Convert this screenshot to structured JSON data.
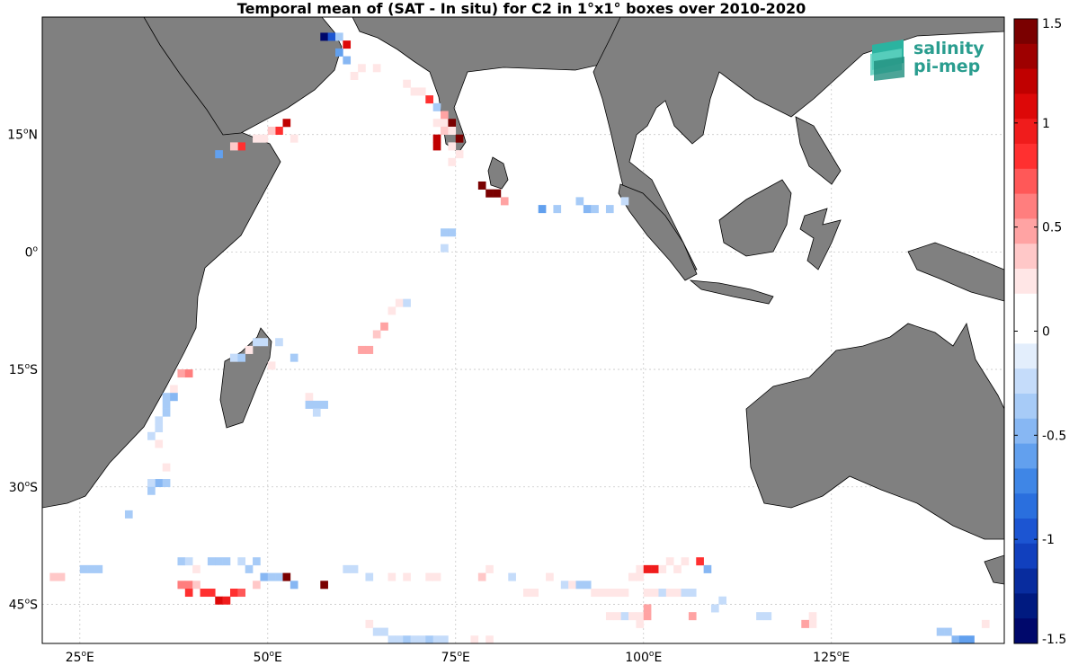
{
  "title": "Temporal mean of (SAT - In situ) for C2 in 1°x1° boxes over 2010-2020",
  "lon_labels": [
    "25",
    "50",
    "75",
    "100",
    "125"
  ],
  "lat_labels": [
    "15",
    "0",
    "15",
    "30",
    "45"
  ],
  "lat_hemis": [
    "N",
    "",
    "S",
    "S",
    "S"
  ],
  "lon_suffix": "E",
  "degree_mark": "o",
  "colorbar": {
    "ticks": [
      "1.5",
      "1",
      "0.5",
      "0",
      "-0.5",
      "-1",
      "-1.5"
    ],
    "min": -1.5,
    "max": 1.5,
    "colors": [
      "#7a0000",
      "#9e0000",
      "#c00000",
      "#dd0808",
      "#f01c1c",
      "#ff3030",
      "#ff5858",
      "#ff7e7e",
      "#ffa3a3",
      "#ffc8c8",
      "#ffe6e6",
      "#ffffff",
      "#ffffff",
      "#e3eefc",
      "#c5dcfa",
      "#a7cbf7",
      "#87b7f3",
      "#62a0ee",
      "#3f86e6",
      "#2a6fde",
      "#1c55d2",
      "#1140be",
      "#082c9e",
      "#001a80",
      "#00086b"
    ]
  },
  "logo": {
    "line1": "salinity",
    "line2": "pi-mep"
  },
  "chart_data": {
    "type": "heatmap",
    "title": "Temporal mean of (SAT - In situ) for C2 in 1°x1° boxes over 2010-2020",
    "lon_range": [
      20,
      148
    ],
    "lat_range": [
      -50,
      30
    ],
    "color_range": [
      -1.5,
      1.5
    ],
    "grid": true,
    "cells": [
      [
        57,
        27,
        -1.5
      ],
      [
        58,
        27,
        -0.9
      ],
      [
        59,
        27,
        -0.4
      ],
      [
        60,
        26,
        1.1
      ],
      [
        59,
        25,
        -0.6
      ],
      [
        60,
        24,
        -0.5
      ],
      [
        61,
        22,
        0.3
      ],
      [
        62,
        23,
        0.3
      ],
      [
        64,
        23,
        0.2
      ],
      [
        68,
        21,
        0.2
      ],
      [
        69,
        20,
        0.3
      ],
      [
        70,
        20,
        0.3
      ],
      [
        71,
        19,
        0.9
      ],
      [
        72,
        18,
        -0.3
      ],
      [
        73,
        17,
        0.5
      ],
      [
        72,
        16,
        0.3
      ],
      [
        73,
        16,
        0.2
      ],
      [
        74,
        16,
        1.4
      ],
      [
        73,
        15,
        0.4
      ],
      [
        74,
        15,
        0.3
      ],
      [
        72,
        14,
        1.2
      ],
      [
        72,
        13,
        1.2
      ],
      [
        74,
        13,
        0.3
      ],
      [
        75,
        12,
        0.3
      ],
      [
        74,
        11,
        0.3
      ],
      [
        75,
        14,
        1.4
      ],
      [
        79,
        7,
        1.4
      ],
      [
        80,
        7,
        1.4
      ],
      [
        78,
        8,
        1.4
      ],
      [
        81,
        6,
        0.5
      ],
      [
        52,
        16,
        1.2
      ],
      [
        51,
        15,
        0.8
      ],
      [
        50,
        15,
        0.4
      ],
      [
        49,
        14,
        0.3
      ],
      [
        48,
        14,
        0.3
      ],
      [
        46,
        13,
        0.9
      ],
      [
        45,
        13,
        0.4
      ],
      [
        43,
        12,
        -0.6
      ],
      [
        53,
        14,
        0.2
      ],
      [
        86,
        5,
        -0.6
      ],
      [
        88,
        5,
        -0.3
      ],
      [
        91,
        6,
        -0.3
      ],
      [
        92,
        5,
        -0.5
      ],
      [
        93,
        5,
        -0.3
      ],
      [
        95,
        5,
        -0.3
      ],
      [
        97,
        6,
        -0.2
      ],
      [
        73,
        2,
        -0.3
      ],
      [
        74,
        2,
        -0.3
      ],
      [
        73,
        0,
        -0.2
      ],
      [
        67,
        -7,
        0.2
      ],
      [
        68,
        -7,
        -0.2
      ],
      [
        66,
        -8,
        0.3
      ],
      [
        65,
        -10,
        0.5
      ],
      [
        64,
        -11,
        0.4
      ],
      [
        62,
        -13,
        0.5
      ],
      [
        63,
        -13,
        0.5
      ],
      [
        48,
        -12,
        -0.2
      ],
      [
        49,
        -12,
        -0.2
      ],
      [
        51,
        -12,
        -0.2
      ],
      [
        47,
        -13,
        0.2
      ],
      [
        45,
        -14,
        -0.2
      ],
      [
        46,
        -14,
        -0.3
      ],
      [
        50,
        -15,
        0.2
      ],
      [
        53,
        -14,
        -0.3
      ],
      [
        38,
        -16,
        0.5
      ],
      [
        39,
        -16,
        0.6
      ],
      [
        37,
        -18,
        0.3
      ],
      [
        36,
        -19,
        -0.3
      ],
      [
        37,
        -19,
        -0.5
      ],
      [
        36,
        -20,
        -0.3
      ],
      [
        36,
        -21,
        -0.3
      ],
      [
        35,
        -22,
        -0.2
      ],
      [
        35,
        -23,
        -0.2
      ],
      [
        35,
        -25,
        0.3
      ],
      [
        34,
        -24,
        -0.2
      ],
      [
        55,
        -19,
        0.2
      ],
      [
        55,
        -20,
        -0.3
      ],
      [
        56,
        -20,
        -0.3
      ],
      [
        57,
        -20,
        -0.3
      ],
      [
        56,
        -21,
        -0.2
      ],
      [
        36,
        -28,
        0.3
      ],
      [
        35,
        -30,
        -0.5
      ],
      [
        34,
        -30,
        -0.2
      ],
      [
        36,
        -30,
        -0.3
      ],
      [
        34,
        -31,
        -0.3
      ],
      [
        31,
        -34,
        -0.3
      ],
      [
        21,
        -42,
        0.4
      ],
      [
        22,
        -42,
        0.4
      ],
      [
        25,
        -41,
        -0.3
      ],
      [
        27,
        -41,
        -0.3
      ],
      [
        26,
        -41,
        -0.3
      ],
      [
        38,
        -40,
        -0.3
      ],
      [
        39,
        -40,
        -0.2
      ],
      [
        40,
        -41,
        0.3
      ],
      [
        42,
        -40,
        -0.3
      ],
      [
        43,
        -40,
        -0.3
      ],
      [
        44,
        -40,
        -0.3
      ],
      [
        46,
        -40,
        -0.2
      ],
      [
        47,
        -41,
        -0.3
      ],
      [
        48,
        -40,
        -0.3
      ],
      [
        49,
        -42,
        -0.5
      ],
      [
        50,
        -42,
        -0.3
      ],
      [
        51,
        -42,
        -0.3
      ],
      [
        52,
        -42,
        1.4
      ],
      [
        53,
        -43,
        -0.5
      ],
      [
        38,
        -43,
        0.6
      ],
      [
        39,
        -43,
        0.6
      ],
      [
        40,
        -43,
        0.4
      ],
      [
        39,
        -44,
        0.9
      ],
      [
        41,
        -44,
        0.9
      ],
      [
        42,
        -44,
        0.8
      ],
      [
        43,
        -45,
        1.1
      ],
      [
        44,
        -45,
        1.0
      ],
      [
        45,
        -44,
        0.8
      ],
      [
        46,
        -44,
        0.7
      ],
      [
        48,
        -43,
        0.4
      ],
      [
        57,
        -43,
        1.5
      ],
      [
        60,
        -41,
        -0.2
      ],
      [
        61,
        -41,
        -0.2
      ],
      [
        63,
        -42,
        -0.2
      ],
      [
        66,
        -42,
        0.3
      ],
      [
        68,
        -42,
        0.3
      ],
      [
        71,
        -42,
        0.2
      ],
      [
        72,
        -42,
        0.2
      ],
      [
        78,
        -42,
        0.4
      ],
      [
        79,
        -41,
        0.3
      ],
      [
        82,
        -42,
        -0.2
      ],
      [
        84,
        -44,
        0.2
      ],
      [
        85,
        -44,
        0.2
      ],
      [
        87,
        -42,
        0.2
      ],
      [
        89,
        -43,
        -0.2
      ],
      [
        90,
        -43,
        0.2
      ],
      [
        91,
        -43,
        -0.3
      ],
      [
        92,
        -43,
        -0.4
      ],
      [
        93,
        -44,
        0.2
      ],
      [
        94,
        -44,
        0.2
      ],
      [
        95,
        -44,
        0.2
      ],
      [
        96,
        -44,
        0.2
      ],
      [
        97,
        -44,
        0.2
      ],
      [
        98,
        -42,
        0.2
      ],
      [
        99,
        -42,
        0.3
      ],
      [
        99,
        -41,
        0.2
      ],
      [
        100,
        -41,
        1.0
      ],
      [
        101,
        -41,
        1.0
      ],
      [
        102,
        -41,
        0.3
      ],
      [
        103,
        -40,
        0.3
      ],
      [
        104,
        -41,
        0.3
      ],
      [
        105,
        -40,
        0.2
      ],
      [
        107,
        -40,
        0.8
      ],
      [
        108,
        -41,
        -0.5
      ],
      [
        100,
        -44,
        0.2
      ],
      [
        101,
        -44,
        0.2
      ],
      [
        102,
        -44,
        -0.2
      ],
      [
        103,
        -44,
        0.2
      ],
      [
        104,
        -44,
        0.2
      ],
      [
        105,
        -44,
        -0.2
      ],
      [
        106,
        -44,
        -0.2
      ],
      [
        110,
        -45,
        -0.2
      ],
      [
        109,
        -46,
        -0.2
      ],
      [
        95,
        -47,
        0.3
      ],
      [
        96,
        -47,
        0.2
      ],
      [
        97,
        -47,
        -0.2
      ],
      [
        98,
        -47,
        0.3
      ],
      [
        99,
        -47,
        0.3
      ],
      [
        100,
        -46,
        0.5
      ],
      [
        100,
        -47,
        0.5
      ],
      [
        99,
        -48,
        0.2
      ],
      [
        106,
        -47,
        0.5
      ],
      [
        115,
        -47,
        -0.2
      ],
      [
        116,
        -47,
        -0.2
      ],
      [
        122,
        -47,
        0.3
      ],
      [
        122,
        -48,
        0.3
      ],
      [
        120,
        -51,
        0.5
      ],
      [
        121,
        -51,
        0.8
      ],
      [
        123,
        -52,
        0.5
      ],
      [
        124,
        -52,
        0.5
      ],
      [
        125,
        -52,
        0.8
      ],
      [
        126,
        -52,
        0.8
      ],
      [
        127,
        -52,
        0.5
      ],
      [
        139,
        -49,
        -0.3
      ],
      [
        140,
        -49,
        -0.3
      ],
      [
        141,
        -50,
        -0.5
      ],
      [
        142,
        -50,
        -0.6
      ],
      [
        143,
        -50,
        -0.6
      ],
      [
        144,
        -51,
        -0.3
      ],
      [
        145,
        -48,
        0.2
      ],
      [
        147,
        -53,
        0.7
      ],
      [
        121,
        -48,
        0.5
      ],
      [
        63,
        -48,
        0.2
      ],
      [
        64,
        -49,
        -0.2
      ],
      [
        65,
        -49,
        -0.2
      ],
      [
        66,
        -50,
        -0.2
      ],
      [
        67,
        -50,
        -0.2
      ],
      [
        68,
        -50,
        -0.3
      ],
      [
        69,
        -50,
        -0.2
      ],
      [
        70,
        -50,
        -0.2
      ],
      [
        71,
        -50,
        -0.3
      ],
      [
        72,
        -50,
        -0.2
      ],
      [
        73,
        -50,
        -0.2
      ],
      [
        76,
        -51,
        0.2
      ],
      [
        77,
        -50,
        0.2
      ],
      [
        79,
        -50,
        0.2
      ]
    ]
  }
}
